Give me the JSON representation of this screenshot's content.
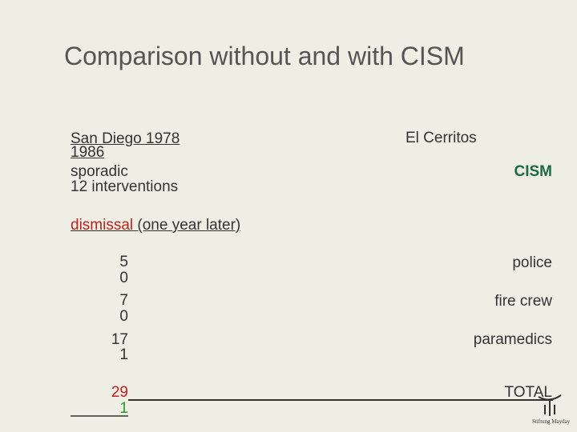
{
  "title": "Comparison without and with CISM",
  "left_header": [
    "San Diego 1978",
    "1986",
    "sporadic",
    "12 interventions"
  ],
  "right_header": [
    "El Cerritos",
    "CISM"
  ],
  "subheading": {
    "highlight": "dismissal",
    "rest": "(one year later)"
  },
  "rows": [
    {
      "label": "police",
      "without": 5,
      "with": 0
    },
    {
      "label": "fire crew",
      "without": 7,
      "with": 0
    },
    {
      "label": "paramedics",
      "without": 17,
      "with": 1
    }
  ],
  "total": {
    "label": "TOTAL",
    "without": 29,
    "with": 1
  },
  "logo": "Stiftung Mayday"
}
